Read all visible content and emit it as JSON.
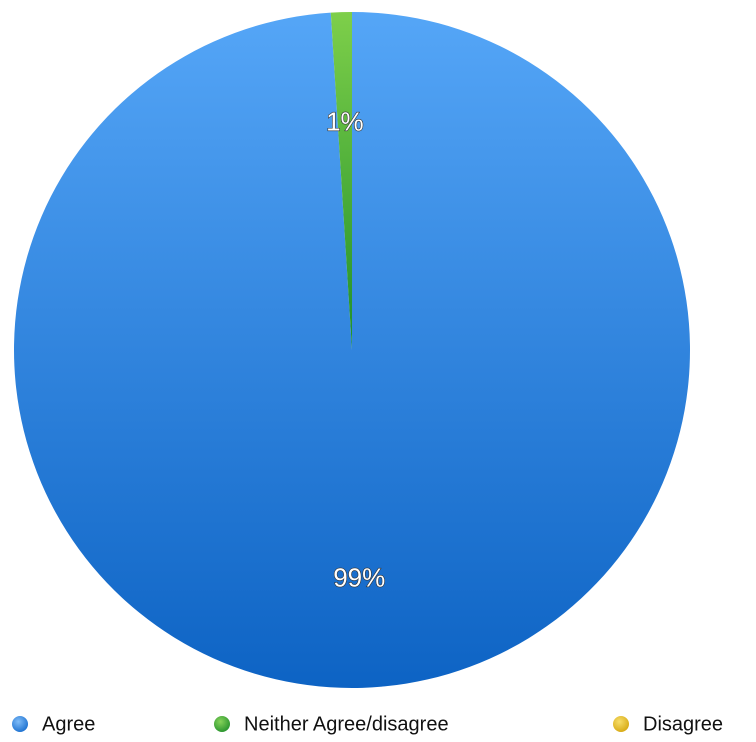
{
  "chart_data": {
    "type": "pie",
    "categories": [
      "Agree",
      "Neither Agree/disagree",
      "Disagree"
    ],
    "values": [
      99,
      1,
      0
    ],
    "data_labels": [
      "99%",
      "1%",
      ""
    ],
    "colors": [
      "#2f86de",
      "#43a83b",
      "#e2bc25"
    ],
    "legend_position": "bottom",
    "title": "",
    "start_angle": "12 o'clock, clockwise"
  }
}
